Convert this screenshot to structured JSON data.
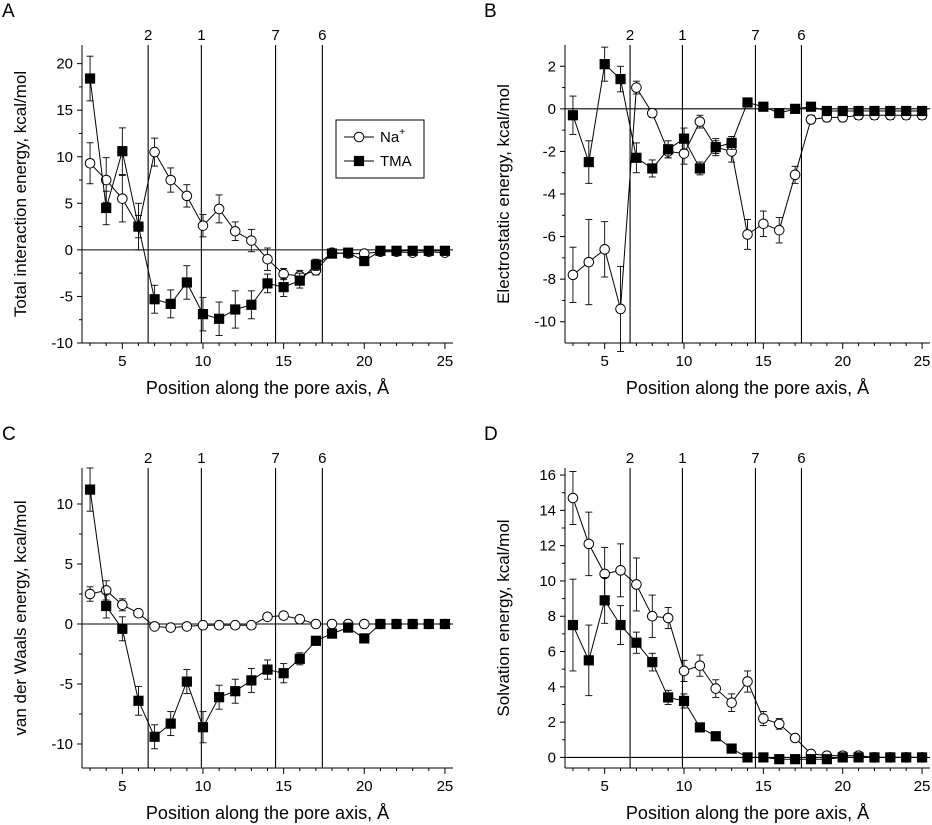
{
  "colors": {
    "ink": "#000000",
    "background": "#ffffff",
    "na_marker_fill": "#ffffff",
    "tma_marker_fill": "#000000"
  },
  "chart_data": [
    {
      "panel": "A",
      "type": "line",
      "xlabel": "Position along the pore axis, Å",
      "ylabel": "Total interaction energy, kcal/mol",
      "xlim": [
        2.5,
        25.5
      ],
      "ylim": [
        -10,
        22
      ],
      "xticks": [
        5,
        10,
        15,
        20,
        25
      ],
      "yticks": [
        -10,
        -5,
        0,
        5,
        10,
        15,
        20
      ],
      "zero_line": true,
      "vlines": [
        {
          "x": 6.6,
          "label": "2"
        },
        {
          "x": 9.9,
          "label": "1"
        },
        {
          "x": 14.5,
          "label": "7"
        },
        {
          "x": 17.4,
          "label": "6"
        }
      ],
      "legend": {
        "position": "top-center",
        "entries": [
          {
            "name": "Na",
            "sup": "+",
            "marker": "open-circle"
          },
          {
            "name": "TMA",
            "marker": "filled-square"
          }
        ]
      },
      "x": [
        3,
        4,
        5,
        6,
        7,
        8,
        9,
        10,
        11,
        12,
        13,
        14,
        15,
        16,
        17,
        18,
        19,
        20,
        21,
        22,
        23,
        24,
        25
      ],
      "series": [
        {
          "name": "Na+",
          "marker": "open-circle",
          "values": [
            9.3,
            7.5,
            5.5,
            2.5,
            10.5,
            7.5,
            5.8,
            2.6,
            4.4,
            2.0,
            1.0,
            -1.0,
            -2.6,
            -2.8,
            -2.2,
            -0.3,
            -0.4,
            -0.4,
            -0.2,
            -0.2,
            -0.3,
            -0.2,
            -0.3
          ],
          "errors": [
            2.2,
            2.4,
            2.5,
            2.5,
            1.5,
            1.3,
            1.2,
            1.2,
            1.5,
            1.0,
            1.2,
            1.2,
            0.6,
            0.6,
            0.5,
            0.3,
            0.3,
            0.3,
            0.2,
            0.2,
            0.2,
            0.2,
            0.2
          ]
        },
        {
          "name": "TMA",
          "marker": "filled-square",
          "values": [
            18.4,
            4.5,
            10.6,
            2.5,
            -5.3,
            -5.8,
            -3.5,
            -6.9,
            -7.4,
            -6.4,
            -5.9,
            -3.6,
            -4.0,
            -3.3,
            -1.6,
            -0.4,
            -0.3,
            -1.2,
            -0.1,
            -0.1,
            -0.1,
            -0.1,
            -0.1
          ],
          "errors": [
            2.4,
            1.8,
            2.5,
            1.2,
            1.5,
            1.5,
            1.8,
            1.8,
            1.8,
            2.0,
            1.5,
            1.0,
            1.0,
            0.8,
            0.6,
            0.3,
            0.3,
            0.4,
            0.2,
            0.2,
            0.2,
            0.2,
            0.2
          ]
        }
      ]
    },
    {
      "panel": "B",
      "type": "line",
      "xlabel": "Position along the pore axis, Å",
      "ylabel": "Electrostatic energy, kcal/mol",
      "xlim": [
        2.5,
        25.5
      ],
      "ylim": [
        -11,
        3
      ],
      "xticks": [
        5,
        10,
        15,
        20,
        25
      ],
      "yticks": [
        -10,
        -8,
        -6,
        -4,
        -2,
        0,
        2
      ],
      "zero_line": true,
      "vlines": [
        {
          "x": 6.6,
          "label": "2"
        },
        {
          "x": 9.9,
          "label": "1"
        },
        {
          "x": 14.5,
          "label": "7"
        },
        {
          "x": 17.4,
          "label": "6"
        }
      ],
      "x": [
        3,
        4,
        5,
        6,
        7,
        8,
        9,
        10,
        11,
        12,
        13,
        14,
        15,
        16,
        17,
        18,
        19,
        20,
        21,
        22,
        23,
        24,
        25
      ],
      "series": [
        {
          "name": "Na+",
          "marker": "open-circle",
          "values": [
            -7.8,
            -7.2,
            -6.6,
            -9.4,
            1.0,
            -0.2,
            -2.0,
            -2.1,
            -0.6,
            -1.8,
            -2.0,
            -5.9,
            -5.4,
            -5.7,
            -3.1,
            -0.5,
            -0.4,
            -0.4,
            -0.3,
            -0.3,
            -0.3,
            -0.3,
            -0.3
          ],
          "errors": [
            1.3,
            2.0,
            1.3,
            2.0,
            0.3,
            0.2,
            0.3,
            0.5,
            0.3,
            0.4,
            0.5,
            0.7,
            0.6,
            0.6,
            0.4,
            0.2,
            0.2,
            0.2,
            0.2,
            0.2,
            0.2,
            0.2,
            0.2
          ]
        },
        {
          "name": "TMA",
          "marker": "filled-square",
          "values": [
            -0.3,
            -2.5,
            2.1,
            1.4,
            -2.3,
            -2.8,
            -1.9,
            -1.4,
            -2.8,
            -1.8,
            -1.6,
            0.3,
            0.1,
            -0.2,
            0.0,
            0.1,
            -0.1,
            -0.1,
            -0.1,
            -0.1,
            -0.1,
            -0.1,
            -0.1
          ],
          "errors": [
            0.9,
            1.0,
            0.8,
            0.6,
            0.7,
            0.4,
            0.4,
            0.5,
            0.3,
            0.3,
            0.3,
            0.1,
            0.1,
            0.1,
            0.1,
            0.1,
            0.1,
            0.1,
            0.1,
            0.1,
            0.1,
            0.1,
            0.1
          ]
        }
      ]
    },
    {
      "panel": "C",
      "type": "line",
      "xlabel": "Position along the pore axis, Å",
      "ylabel": "van der Waals energy, kcal/mol",
      "xlim": [
        2.5,
        25.5
      ],
      "ylim": [
        -12,
        13
      ],
      "xticks": [
        5,
        10,
        15,
        20,
        25
      ],
      "yticks": [
        -10,
        -5,
        0,
        5,
        10
      ],
      "zero_line": true,
      "vlines": [
        {
          "x": 6.6,
          "label": "2"
        },
        {
          "x": 9.9,
          "label": "1"
        },
        {
          "x": 14.5,
          "label": "7"
        },
        {
          "x": 17.4,
          "label": "6"
        }
      ],
      "x": [
        3,
        4,
        5,
        6,
        7,
        8,
        9,
        10,
        11,
        12,
        13,
        14,
        15,
        16,
        17,
        18,
        19,
        20,
        21,
        22,
        23,
        24,
        25
      ],
      "series": [
        {
          "name": "Na+",
          "marker": "open-circle",
          "values": [
            2.5,
            2.8,
            1.6,
            0.9,
            -0.2,
            -0.3,
            -0.2,
            -0.1,
            -0.1,
            -0.1,
            -0.1,
            0.6,
            0.7,
            0.4,
            0.0,
            0.0,
            0.0,
            0.0,
            0.0,
            0.0,
            0.0,
            0.0,
            0.0
          ],
          "errors": [
            0.6,
            0.8,
            0.5,
            0.3,
            0.2,
            0.2,
            0.2,
            0.2,
            0.2,
            0.2,
            0.2,
            0.2,
            0.2,
            0.2,
            0.1,
            0.1,
            0.1,
            0.1,
            0.1,
            0.1,
            0.1,
            0.1,
            0.1
          ]
        },
        {
          "name": "TMA",
          "marker": "filled-square",
          "values": [
            11.2,
            1.5,
            -0.4,
            -6.4,
            -9.4,
            -8.3,
            -4.8,
            -8.6,
            -6.1,
            -5.6,
            -4.7,
            -3.8,
            -4.1,
            -2.9,
            -1.4,
            -0.8,
            -0.3,
            -1.2,
            0.0,
            0.0,
            0.0,
            0.0,
            0.0
          ],
          "errors": [
            1.8,
            1.0,
            1.0,
            1.2,
            1.0,
            1.0,
            1.0,
            1.3,
            1.0,
            1.0,
            1.0,
            0.8,
            0.8,
            0.5,
            0.3,
            0.3,
            0.2,
            0.3,
            0.1,
            0.1,
            0.1,
            0.1,
            0.1
          ]
        }
      ]
    },
    {
      "panel": "D",
      "type": "line",
      "xlabel": "Position along the pore axis, Å",
      "ylabel": "Solvation energy, kcal/mol",
      "xlim": [
        2.5,
        25.5
      ],
      "ylim": [
        -0.6,
        16.4
      ],
      "xticks": [
        5,
        10,
        15,
        20,
        25
      ],
      "yticks": [
        0,
        2,
        4,
        6,
        8,
        10,
        12,
        14,
        16
      ],
      "zero_line": true,
      "vlines": [
        {
          "x": 6.6,
          "label": "2"
        },
        {
          "x": 9.9,
          "label": "1"
        },
        {
          "x": 14.5,
          "label": "7"
        },
        {
          "x": 17.4,
          "label": "6"
        }
      ],
      "x": [
        3,
        4,
        5,
        6,
        7,
        8,
        9,
        10,
        11,
        12,
        13,
        14,
        15,
        16,
        17,
        18,
        19,
        20,
        21,
        22,
        23,
        24,
        25
      ],
      "series": [
        {
          "name": "Na+",
          "marker": "open-circle",
          "values": [
            14.7,
            12.1,
            10.4,
            10.6,
            9.8,
            8.0,
            7.9,
            4.9,
            5.2,
            3.9,
            3.1,
            4.3,
            2.2,
            1.9,
            1.1,
            0.2,
            0.1,
            0.1,
            0.1,
            0.0,
            0.0,
            0.0,
            0.0
          ],
          "errors": [
            1.5,
            1.8,
            1.5,
            1.5,
            1.5,
            1.2,
            0.6,
            0.6,
            0.6,
            0.5,
            0.5,
            0.6,
            0.4,
            0.3,
            0.2,
            0.2,
            0.2,
            0.2,
            0.2,
            0.2,
            0.2,
            0.2,
            0.2
          ]
        },
        {
          "name": "TMA",
          "marker": "filled-square",
          "values": [
            7.5,
            5.5,
            8.9,
            7.5,
            6.5,
            5.4,
            3.4,
            3.2,
            1.7,
            1.2,
            0.5,
            0.0,
            0.0,
            -0.1,
            -0.1,
            -0.1,
            -0.1,
            0.0,
            0.0,
            0.0,
            0.0,
            0.0,
            0.0
          ],
          "errors": [
            2.6,
            2.0,
            1.3,
            1.1,
            0.6,
            0.5,
            0.4,
            0.4,
            0.2,
            0.2,
            0.2,
            0.1,
            0.1,
            0.1,
            0.1,
            0.1,
            0.1,
            0.1,
            0.1,
            0.1,
            0.1,
            0.1,
            0.1
          ]
        }
      ]
    }
  ]
}
